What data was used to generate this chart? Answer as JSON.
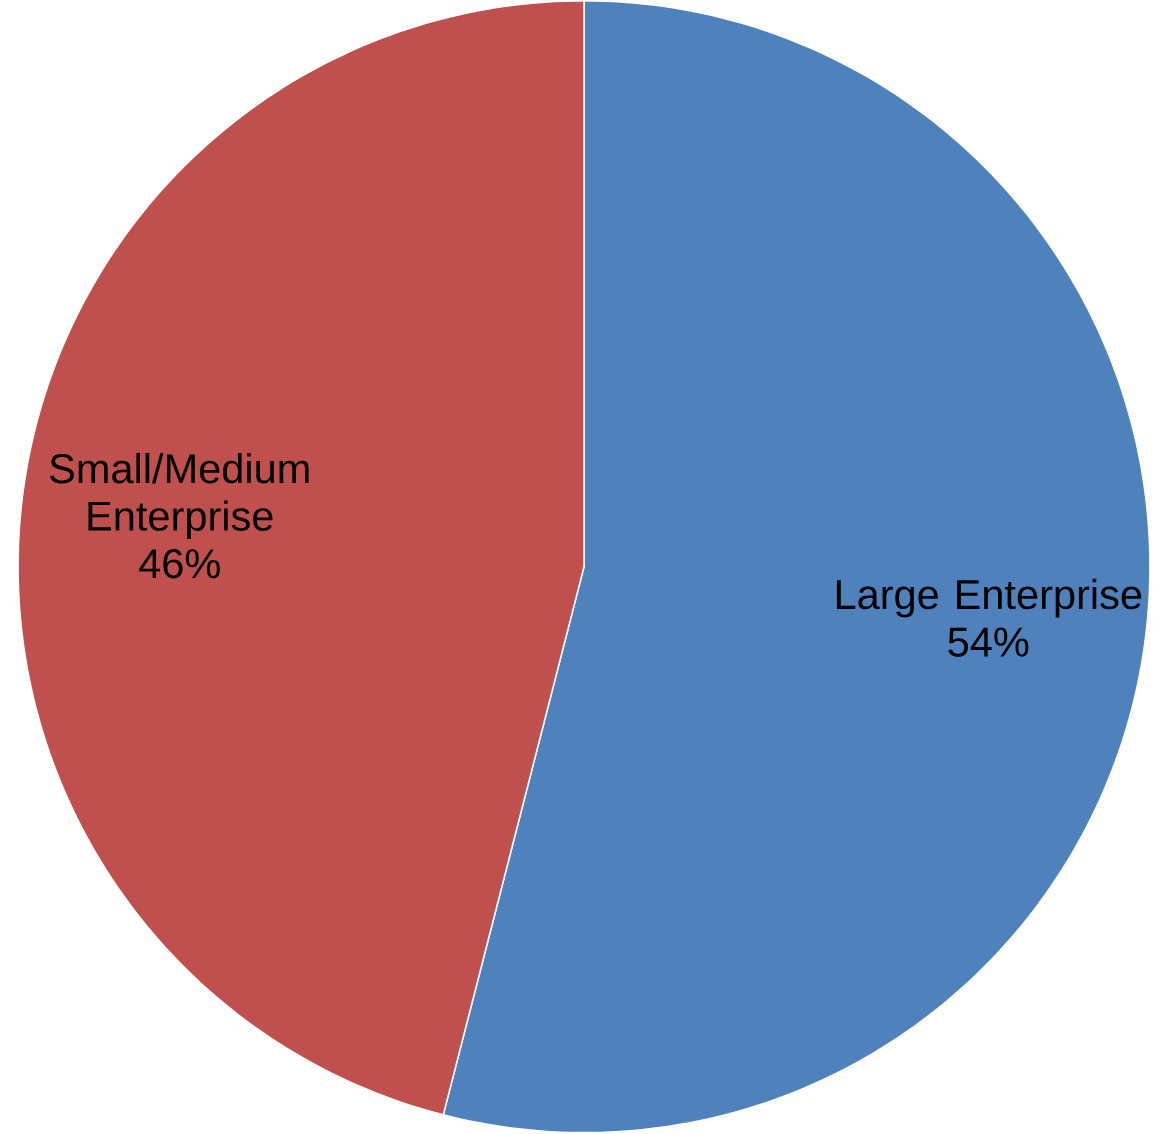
{
  "chart_data": {
    "type": "pie",
    "categories": [
      "Large Enterprise",
      "Small/Medium Enterprise"
    ],
    "values": [
      54,
      46
    ],
    "colors": [
      "#4f81bd",
      "#c0504d"
    ],
    "value_labels": [
      "54%",
      "46%"
    ]
  }
}
